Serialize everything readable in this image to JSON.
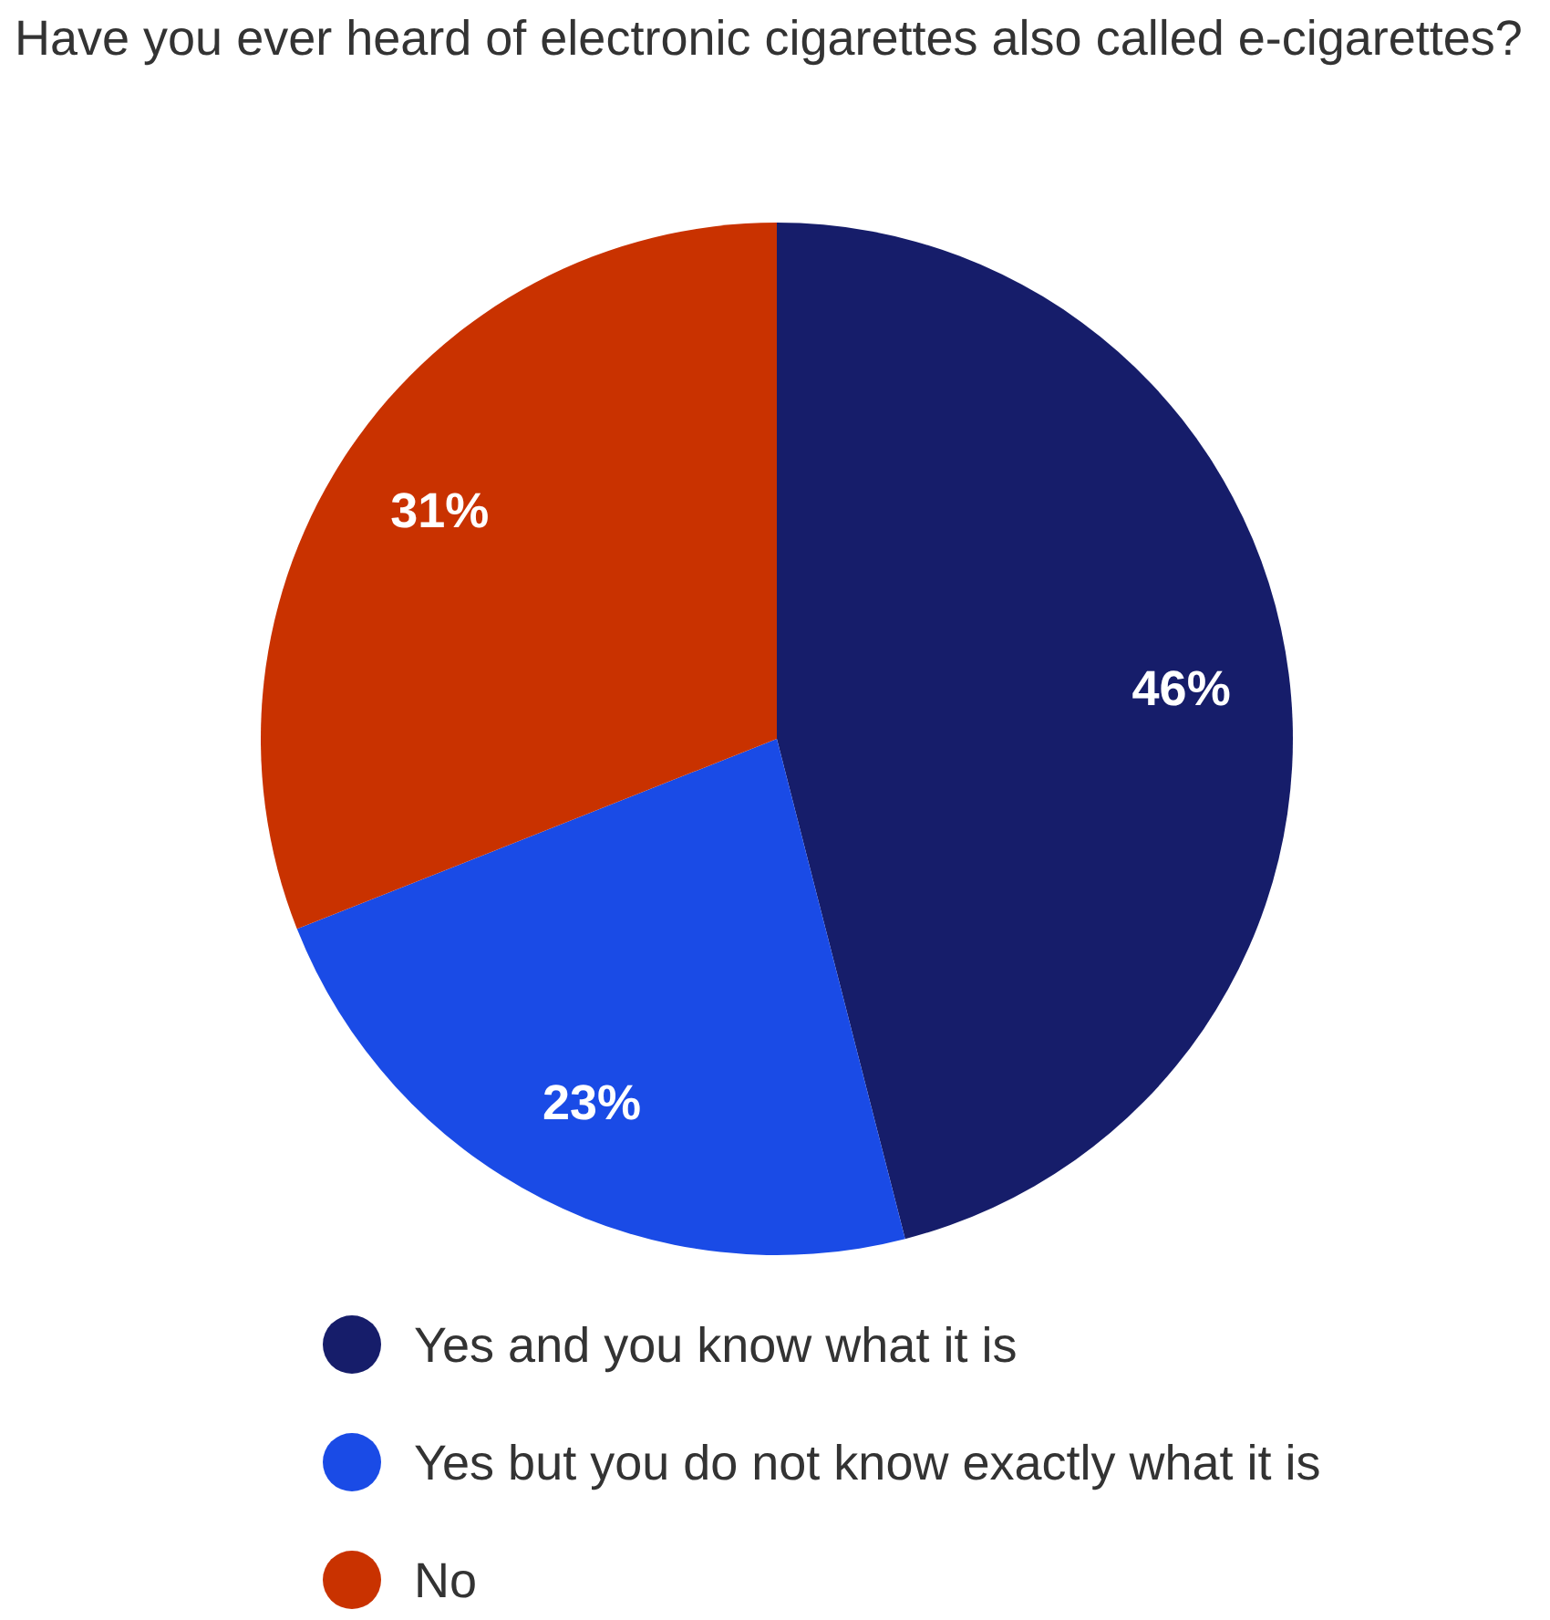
{
  "chart_data": {
    "type": "pie",
    "title": "Have you ever heard of electronic cigarettes also called e-cigarettes?",
    "categories": [
      "Yes and you know what it is",
      "Yes but you do not know exactly what it is",
      "No"
    ],
    "values": [
      46,
      23,
      31
    ],
    "colors": [
      "#161d6a",
      "#1a4be6",
      "#c93200"
    ],
    "value_labels": [
      "46%",
      "23%",
      "31%"
    ],
    "legend": "bottom"
  }
}
